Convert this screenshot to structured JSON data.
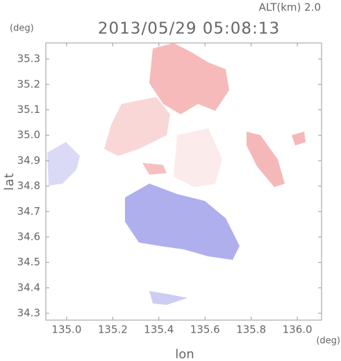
{
  "chart_data": {
    "type": "map",
    "title": "2013/05/29 05:08:13",
    "subtitle": "ALT(km) 2.0",
    "y_unit": "(deg)",
    "x_unit": "(deg)",
    "ylabel": "lat",
    "xlabel": "lon",
    "xlim": [
      134.91,
      136.105
    ],
    "ylim": [
      34.273,
      35.363
    ],
    "xticks": [
      {
        "value": 135.0,
        "label": "135.0"
      },
      135.2,
      135.4,
      135.6,
      135.8,
      {
        "value": 136.0,
        "label": "136.0"
      }
    ],
    "yticks": [
      34.3,
      34.4,
      34.5,
      34.6,
      34.7,
      34.8,
      34.9,
      {
        "value": 35.0,
        "label": "35.0"
      },
      35.1,
      35.2,
      35.3
    ],
    "grid": false
  }
}
